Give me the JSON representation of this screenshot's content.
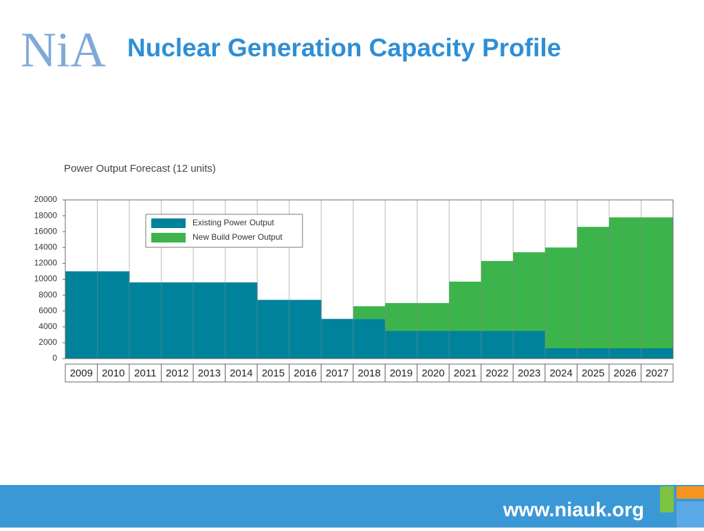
{
  "header": {
    "logo": "NiA",
    "title": "Nuclear Generation Capacity Profile"
  },
  "footer": {
    "url": "www.niauk.org"
  },
  "chart_data": {
    "type": "stacked-step-area",
    "title": "Power Output Forecast (12 units)",
    "categories": [
      "2009",
      "2010",
      "2011",
      "2012",
      "2013",
      "2014",
      "2015",
      "2016",
      "2017",
      "2018",
      "2019",
      "2020",
      "2021",
      "2022",
      "2023",
      "2024",
      "2025",
      "2026",
      "2027"
    ],
    "series": [
      {
        "name": "Existing Power Output",
        "color": "#00829b",
        "values": [
          11000,
          11000,
          9600,
          9600,
          9600,
          9600,
          7400,
          7400,
          5000,
          5000,
          3500,
          3500,
          3500,
          3500,
          3500,
          1300,
          1300,
          1300,
          1300
        ]
      },
      {
        "name": "New Build Power Output",
        "color": "#3cb44b",
        "values": [
          0,
          0,
          0,
          0,
          0,
          0,
          0,
          0,
          0,
          1600,
          3500,
          3500,
          6200,
          8800,
          9900,
          12700,
          15300,
          16500,
          16500
        ]
      }
    ],
    "ylim": [
      0,
      20000
    ],
    "yticks": [
      0,
      2000,
      4000,
      6000,
      8000,
      10000,
      12000,
      14000,
      16000,
      18000,
      20000
    ]
  }
}
